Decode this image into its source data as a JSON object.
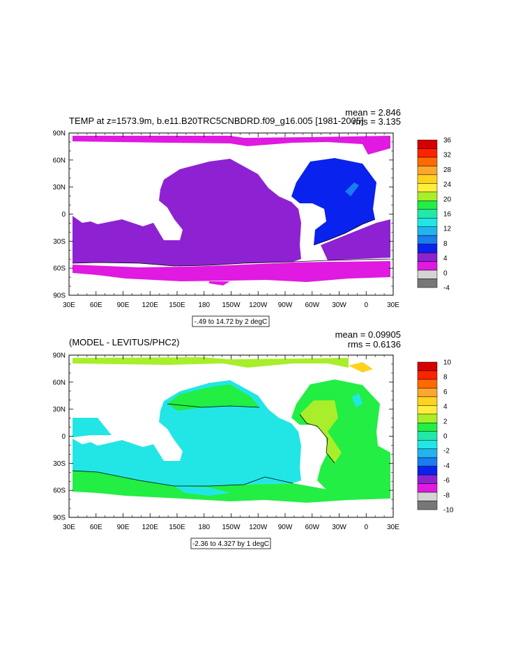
{
  "panels": [
    {
      "title": "TEMP at z=1573.9m, b.e11.B20TRC5CNBDRD.f09_g16.005 [1981-2005]",
      "mean": "mean = 2.846",
      "rms": "rms = 3.135",
      "info": "-.49 to 14.72 by 2 degC",
      "colorbar_labels": [
        "36",
        "32",
        "28",
        "24",
        "20",
        "16",
        "12",
        "8",
        "4",
        "0",
        "-4"
      ],
      "colorbar_colors": [
        "#d40000",
        "#ff2200",
        "#ff6a00",
        "#ffa62e",
        "#ffd21e",
        "#ffee3a",
        "#a8ee2a",
        "#22ee44",
        "#22e8a8",
        "#22e6e6",
        "#22b4ee",
        "#1a7cee",
        "#0a22ee",
        "#8e22d2",
        "#e01ae0",
        "#d4d4d4",
        "#777777"
      ],
      "ocean_color": "#8e22d2",
      "south_color": "#e01ae0",
      "atlantic_color": "#0a22ee"
    },
    {
      "title": "(MODEL - LEVITUS/PHC2)",
      "mean": "mean = 0.09905",
      "rms": "rms = 0.6136",
      "info": "-2.36 to 4.327 by 1 degC",
      "colorbar_labels": [
        "10",
        "8",
        "6",
        "4",
        "2",
        "0",
        "-2",
        "-4",
        "-6",
        "-8",
        "-10"
      ],
      "colorbar_colors": [
        "#d40000",
        "#ff2200",
        "#ff6a00",
        "#ffa62e",
        "#ffd21e",
        "#ffee3a",
        "#a8ee2a",
        "#22ee44",
        "#22e8a8",
        "#22e6e6",
        "#22b4ee",
        "#1a7cee",
        "#0a22ee",
        "#8e22d2",
        "#e01ae0",
        "#d4d4d4",
        "#777777"
      ],
      "ocean_color": "#22e6e6",
      "south_color": "#22ee44",
      "atlantic_color": "#a8ee2a"
    }
  ],
  "axes": {
    "lat_labels": [
      "90N",
      "60N",
      "30N",
      "0",
      "30S",
      "60S",
      "90S"
    ],
    "lon_labels": [
      "30E",
      "60E",
      "90E",
      "120E",
      "150E",
      "180",
      "150W",
      "120W",
      "90W",
      "60W",
      "30W",
      "0",
      "30E"
    ]
  }
}
